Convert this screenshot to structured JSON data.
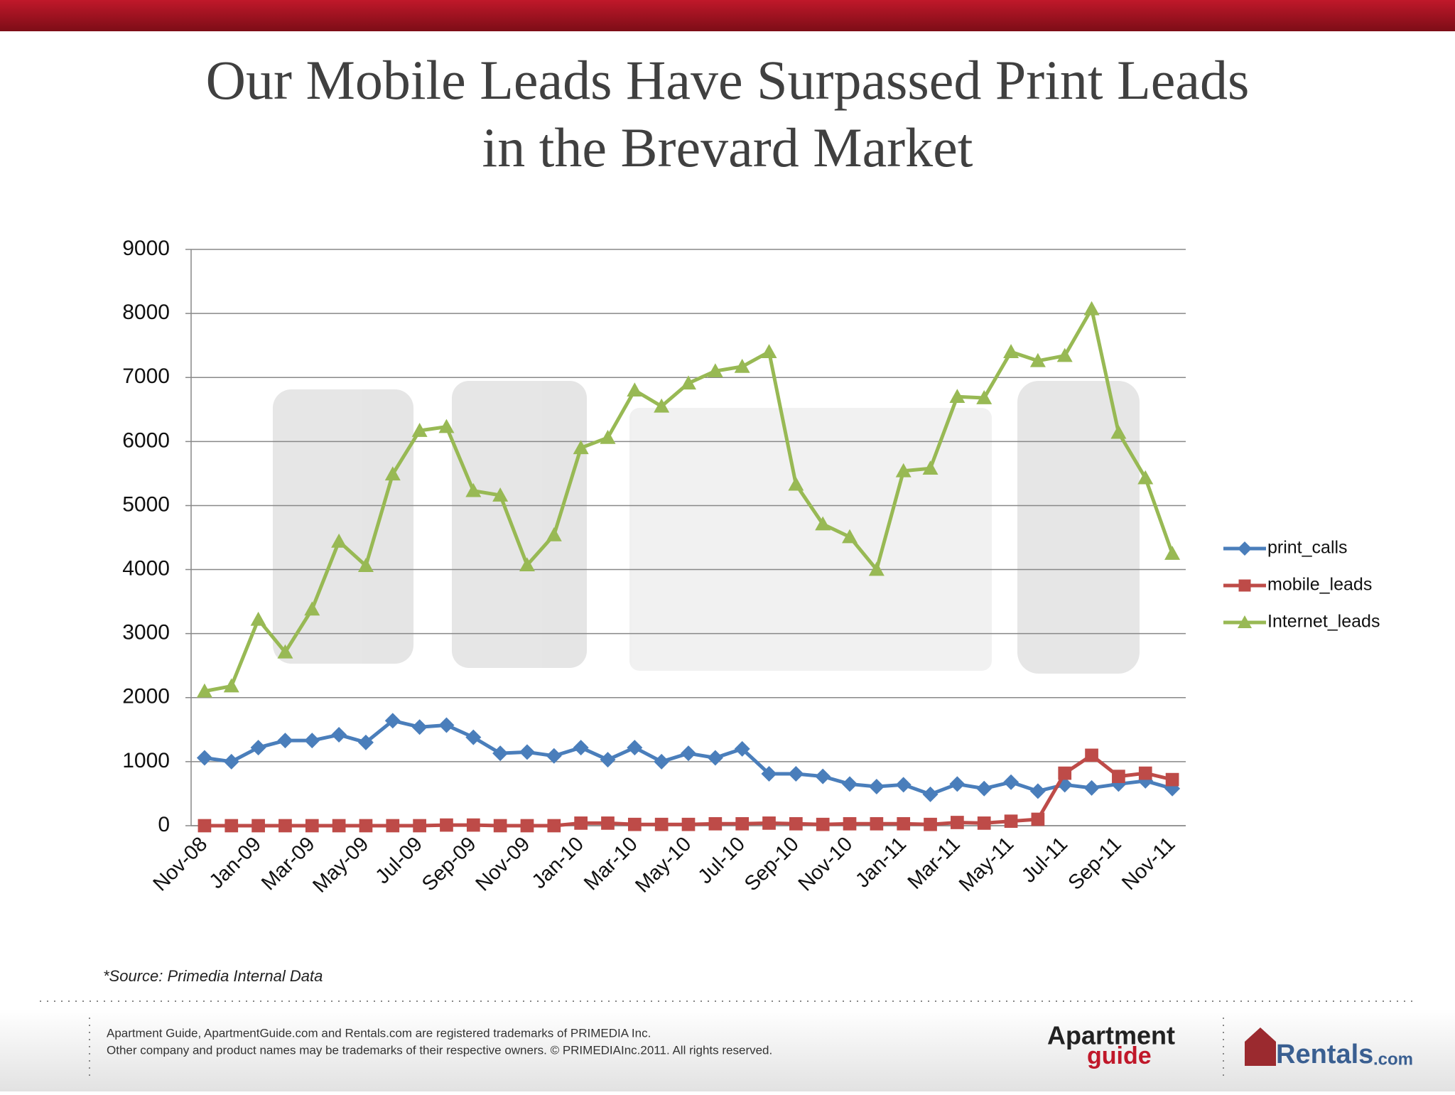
{
  "chart_data": {
    "type": "line",
    "title": [
      "Our Mobile Leads Have Surpassed Print Leads",
      "in the Brevard Market"
    ],
    "categories": [
      "Nov-08",
      null,
      "Jan-09",
      null,
      "Mar-09",
      null,
      "May-09",
      null,
      "Jul-09",
      null,
      "Sep-09",
      null,
      "Nov-09",
      null,
      "Jan-10",
      null,
      "Mar-10",
      null,
      "May-10",
      null,
      "Jul-10",
      null,
      "Sep-10",
      null,
      "Nov-10",
      null,
      "Jan-11",
      null,
      "Mar-11",
      null,
      "May-11",
      null,
      "Jul-11",
      null,
      "Sep-11",
      null,
      "Nov-11"
    ],
    "series": [
      {
        "name": "print_calls",
        "color": "#4a7ebb",
        "marker": "diamond",
        "values": [
          1060,
          1000,
          1220,
          1330,
          1330,
          1420,
          1300,
          1640,
          1540,
          1570,
          1380,
          1130,
          1150,
          1090,
          1220,
          1030,
          1220,
          1000,
          1130,
          1060,
          1200,
          810,
          810,
          770,
          650,
          610,
          640,
          490,
          650,
          580,
          680,
          540,
          640,
          590,
          650,
          700,
          580
        ]
      },
      {
        "name": "mobile_leads",
        "color": "#be4b48",
        "marker": "square",
        "values": [
          0,
          0,
          0,
          0,
          0,
          0,
          0,
          0,
          0,
          10,
          10,
          0,
          0,
          0,
          40,
          40,
          20,
          20,
          20,
          30,
          30,
          40,
          30,
          20,
          30,
          30,
          30,
          20,
          50,
          40,
          70,
          100,
          820,
          1100,
          770,
          820,
          720
        ]
      },
      {
        "name": "Internet_leads",
        "color": "#98b954",
        "marker": "triangle",
        "values": [
          2100,
          2180,
          3220,
          2710,
          3380,
          4440,
          4060,
          5490,
          6170,
          6230,
          5230,
          5160,
          4070,
          4540,
          5900,
          6060,
          6800,
          6550,
          6910,
          7100,
          7170,
          7400,
          5330,
          4710,
          4510,
          4000,
          5540,
          5580,
          6700,
          6680,
          7400,
          7260,
          7340,
          8070,
          6140,
          5430,
          4250
        ]
      }
    ],
    "ylim": [
      0,
      9000
    ],
    "yticks": [
      0,
      1000,
      2000,
      3000,
      4000,
      5000,
      6000,
      7000,
      8000,
      9000
    ],
    "grid": true,
    "legend": "right",
    "source": "*Source:  Primedia Internal Data"
  },
  "footer": {
    "lines": [
      "Apartment Guide, ApartmentGuide.com and Rentals.com are registered trademarks of PRIMEDIA Inc.",
      "Other company and product names may be trademarks of their respective owners. © PRIMEDIAInc.2011. All rights reserved."
    ],
    "logo1": [
      "Apartment",
      "guide"
    ],
    "logo2": [
      "Rentals",
      ".com"
    ]
  }
}
